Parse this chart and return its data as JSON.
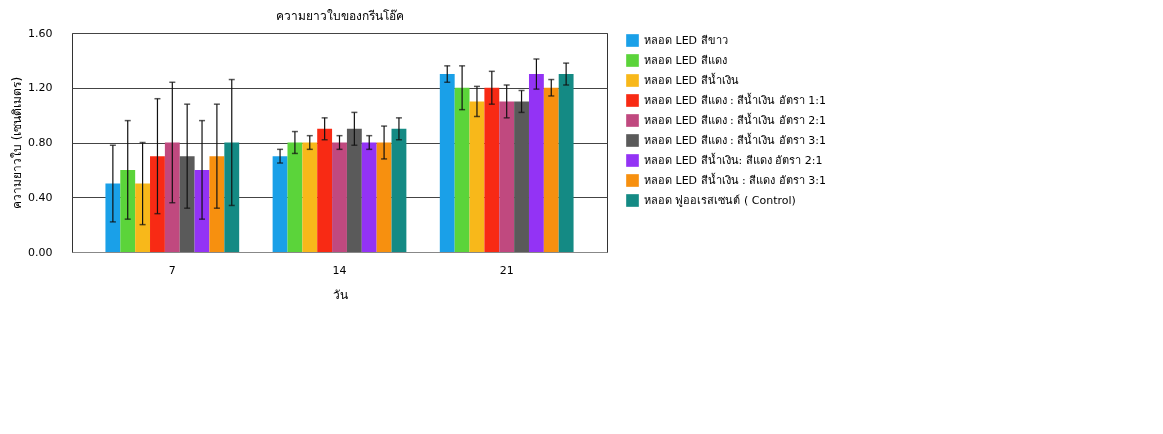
{
  "chart_data": {
    "type": "bar",
    "title": "ความยาวใบของกรีนโอ๊ค",
    "xlabel": "วัน",
    "ylabel": "ความยาวใบ (เซนติเมตร)",
    "categories": [
      "7",
      "14",
      "21"
    ],
    "series": [
      {
        "name": "หลอด LED  สีขาว",
        "color": "#1aa0e8",
        "values": [
          0.5,
          0.7,
          1.3
        ],
        "errors": [
          0.28,
          0.05,
          0.06
        ]
      },
      {
        "name": "หลอด LED สีแดง",
        "color": "#5bd43a",
        "values": [
          0.6,
          0.8,
          1.2
        ],
        "errors": [
          0.36,
          0.08,
          0.16
        ]
      },
      {
        "name": "หลอด LED สีน้ำเงิน",
        "color": "#f8b81a",
        "values": [
          0.5,
          0.8,
          1.1
        ],
        "errors": [
          0.3,
          0.05,
          0.11
        ]
      },
      {
        "name": "หลอด LED สีแดง : สีน้ำเงิน อัตรา 1:1",
        "color": "#f82a14",
        "values": [
          0.7,
          0.9,
          1.2
        ],
        "errors": [
          0.42,
          0.08,
          0.12
        ]
      },
      {
        "name": "หลอด LED สีแดง : สีน้ำเงิน อัตรา 2:1",
        "color": "#c0497f",
        "values": [
          0.8,
          0.8,
          1.1
        ],
        "errors": [
          0.44,
          0.05,
          0.12
        ]
      },
      {
        "name": "หลอด LED สีแดง : สีน้ำเงิน อัตรา 3:1",
        "color": "#5a5a5a",
        "values": [
          0.7,
          0.9,
          1.1
        ],
        "errors": [
          0.38,
          0.12,
          0.08
        ]
      },
      {
        "name": "หลอด LED สีน้ำเงิน: สีแดง อัตรา  2:1",
        "color": "#9333f5",
        "values": [
          0.6,
          0.8,
          1.3
        ],
        "errors": [
          0.36,
          0.05,
          0.11
        ]
      },
      {
        "name": "หลอด LED สีน้ำเงิน : สีแดง  อัตรา 3:1",
        "color": "#f7900f",
        "values": [
          0.7,
          0.8,
          1.2
        ],
        "errors": [
          0.38,
          0.12,
          0.06
        ]
      },
      {
        "name": "หลอด ฟูออเรสเซนต์ ( Control)",
        "color": "#148a84",
        "values": [
          0.8,
          0.9,
          1.3
        ],
        "errors": [
          0.46,
          0.08,
          0.08
        ]
      }
    ],
    "ylim": [
      0,
      1.6
    ],
    "yticks": [
      {
        "value": 0,
        "label": "0.00"
      },
      {
        "value": 0.4,
        "label": "0.40"
      },
      {
        "value": 0.8,
        "label": "0.80"
      },
      {
        "value": 1.2,
        "label": "1.20"
      },
      {
        "value": 1.6,
        "label": "1.60"
      }
    ],
    "grid": "y",
    "legend": "right"
  }
}
